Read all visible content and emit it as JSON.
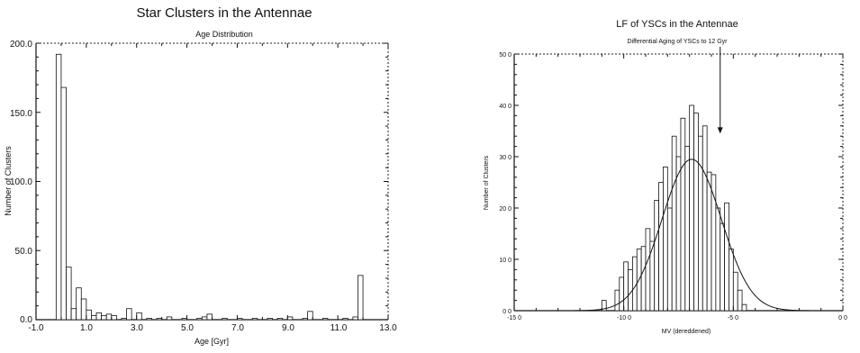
{
  "chart_data": [
    {
      "type": "bar",
      "title": "Star Clusters in the Antennae",
      "subtitle": "Age Distribution",
      "xlabel": "Age [Gyr]",
      "ylabel": "Number of Clusters",
      "xlim": [
        -1.0,
        13.0
      ],
      "ylim": [
        0,
        200
      ],
      "x_ticks": [
        "-1.0",
        "1.0",
        "3.0",
        "5.0",
        "7.0",
        "9.0",
        "11.0",
        "13.0"
      ],
      "y_ticks": [
        "0.0",
        "50.0",
        "100.0",
        "150.0",
        "200.0"
      ],
      "bin_width": 0.2,
      "x": [
        -0.1,
        0.1,
        0.3,
        0.5,
        0.7,
        0.9,
        1.1,
        1.3,
        1.5,
        1.7,
        1.9,
        2.1,
        2.5,
        2.7,
        3.1,
        3.5,
        3.9,
        4.3,
        4.9,
        5.5,
        5.7,
        5.9,
        6.5,
        7.1,
        7.7,
        8.3,
        8.7,
        9.1,
        9.7,
        9.9,
        10.5,
        11.3,
        11.7,
        11.9
      ],
      "values": [
        192,
        168,
        38,
        8,
        23,
        15,
        7,
        3,
        5,
        3,
        4,
        3,
        1,
        8,
        5,
        1,
        1,
        2,
        1,
        1,
        2,
        4,
        1,
        1,
        1,
        1,
        1,
        2,
        1,
        6,
        1,
        1,
        2,
        32
      ],
      "grid": false
    },
    {
      "type": "bar",
      "title": "LF of YSCs in the Antennae",
      "subtitle": "Differential Aging of YSCs to 12 Gyr",
      "xlabel": "MV (dereddened)",
      "ylabel": "Number of Clusters",
      "xlim": [
        -15.0,
        0.0
      ],
      "ylim": [
        0,
        500
      ],
      "x_ticks": [
        "-15 0",
        "-10 0",
        "-5 0",
        "0 0"
      ],
      "y_ticks": [
        "0 0",
        "10 0",
        "20 0",
        "30 0",
        "40 0",
        "50 0"
      ],
      "bin_width": 0.2,
      "x": [
        -10.9,
        -10.3,
        -10.1,
        -9.9,
        -9.7,
        -9.5,
        -9.3,
        -9.1,
        -8.9,
        -8.7,
        -8.5,
        -8.3,
        -8.1,
        -7.9,
        -7.7,
        -7.5,
        -7.3,
        -7.1,
        -6.9,
        -6.7,
        -6.5,
        -6.3,
        -6.1,
        -5.9,
        -5.7,
        -5.5,
        -5.3,
        -5.1,
        -4.9,
        -4.7,
        -4.5
      ],
      "values": [
        20,
        40,
        65,
        95,
        80,
        105,
        120,
        125,
        160,
        135,
        215,
        250,
        280,
        200,
        340,
        300,
        375,
        320,
        400,
        385,
        340,
        360,
        270,
        265,
        200,
        170,
        210,
        120,
        75,
        40,
        12
      ],
      "fit_curve": {
        "type": "gaussian",
        "mean": -6.9,
        "sigma": 1.35,
        "amplitude": 295
      },
      "annotation": {
        "text": "Differential Aging of YSCs to 12 Gyr",
        "arrow_to_x": -5.6,
        "arrow_to_y": 345
      },
      "grid": false
    }
  ]
}
